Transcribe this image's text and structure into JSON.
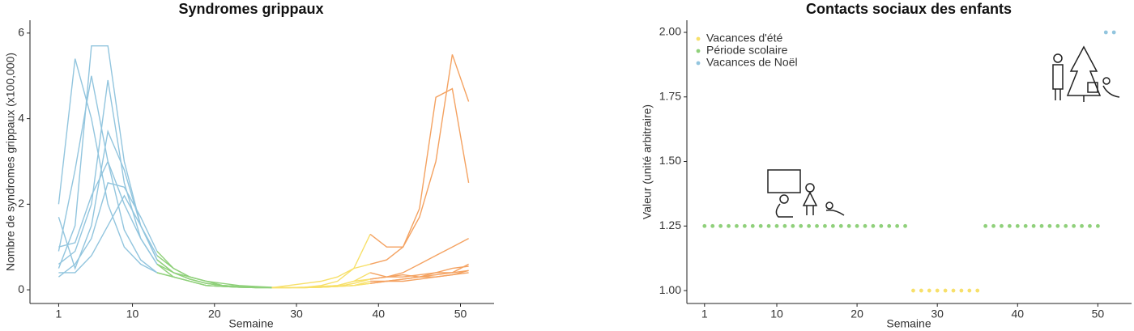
{
  "chart_data": [
    {
      "type": "line",
      "title": "Syndromes grippaux",
      "x_label": "Semaine",
      "y_label": "Nombre de syndromes grippaux (x100,000)",
      "x": [
        1,
        3,
        5,
        7,
        9,
        11,
        13,
        15,
        17,
        19,
        21,
        23,
        25,
        27,
        29,
        31,
        33,
        35,
        37,
        39,
        41,
        43,
        45,
        47,
        49,
        51
      ],
      "segments": [
        {
          "from": 1,
          "to": 13,
          "color": "#92c5de"
        },
        {
          "from": 13,
          "to": 27,
          "color": "#8fd07a"
        },
        {
          "from": 27,
          "to": 39,
          "color": "#f7e06a"
        },
        {
          "from": 39,
          "to": 51,
          "color": "#f4a261"
        }
      ],
      "series": [
        {
          "values": [
            2.0,
            5.4,
            4.0,
            2.0,
            1.0,
            0.6,
            0.4,
            0.3,
            0.2,
            0.1,
            0.08,
            0.06,
            0.05,
            0.05,
            0.05,
            0.06,
            0.08,
            0.1,
            0.2,
            0.4,
            0.3,
            0.3,
            0.35,
            0.4,
            0.4,
            0.45
          ]
        },
        {
          "values": [
            0.5,
            1.5,
            5.7,
            5.7,
            3.0,
            1.5,
            0.7,
            0.4,
            0.25,
            0.15,
            0.1,
            0.08,
            0.06,
            0.05,
            0.05,
            0.06,
            0.1,
            0.2,
            0.5,
            1.3,
            1.0,
            1.0,
            1.7,
            3.0,
            5.5,
            4.4
          ]
        },
        {
          "values": [
            0.9,
            2.8,
            5.0,
            3.0,
            1.4,
            0.7,
            0.4,
            0.3,
            0.2,
            0.1,
            0.08,
            0.06,
            0.05,
            0.05,
            0.1,
            0.15,
            0.2,
            0.3,
            0.5,
            0.6,
            0.7,
            1.0,
            1.9,
            4.5,
            4.7,
            2.5
          ]
        },
        {
          "values": [
            0.6,
            0.9,
            2.0,
            4.9,
            2.5,
            1.2,
            0.6,
            0.3,
            0.2,
            0.1,
            0.08,
            0.06,
            0.05,
            0.05,
            0.05,
            0.06,
            0.08,
            0.1,
            0.2,
            0.25,
            0.3,
            0.4,
            0.6,
            0.8,
            1.0,
            1.2
          ]
        },
        {
          "values": [
            1.7,
            0.5,
            1.5,
            3.7,
            2.8,
            1.5,
            0.7,
            0.4,
            0.25,
            0.15,
            0.1,
            0.08,
            0.05,
            0.05,
            0.05,
            0.05,
            0.06,
            0.08,
            0.1,
            0.15,
            0.2,
            0.25,
            0.3,
            0.35,
            0.4,
            0.6
          ]
        },
        {
          "values": [
            0.3,
            0.6,
            1.2,
            2.5,
            2.4,
            1.7,
            0.9,
            0.5,
            0.3,
            0.2,
            0.1,
            0.08,
            0.06,
            0.05,
            0.05,
            0.05,
            0.06,
            0.08,
            0.1,
            0.15,
            0.2,
            0.2,
            0.25,
            0.3,
            0.35,
            0.45
          ]
        },
        {
          "values": [
            1.0,
            1.1,
            2.2,
            3.0,
            2.0,
            1.2,
            0.6,
            0.4,
            0.3,
            0.2,
            0.1,
            0.08,
            0.06,
            0.05,
            0.05,
            0.05,
            0.06,
            0.08,
            0.15,
            0.25,
            0.3,
            0.35,
            0.3,
            0.4,
            0.5,
            0.55
          ]
        },
        {
          "values": [
            0.4,
            0.4,
            0.8,
            1.5,
            2.2,
            1.5,
            0.8,
            0.5,
            0.3,
            0.2,
            0.15,
            0.1,
            0.08,
            0.06,
            0.05,
            0.05,
            0.06,
            0.08,
            0.1,
            0.2,
            0.2,
            0.25,
            0.3,
            0.3,
            0.35,
            0.4
          ]
        }
      ],
      "xlim": [
        -2.5,
        54.1
      ],
      "xticks": [
        10,
        20,
        30,
        40,
        50,
        1
      ],
      "ylim": [
        -0.32,
        6.3
      ],
      "yticks": [
        0,
        2,
        4,
        6
      ]
    },
    {
      "type": "scatter",
      "title": "Contacts sociaux des enfants",
      "x_label": "Semaine",
      "y_label": "Valeur (unité arbitraire)",
      "legend": "top-left",
      "series": [
        {
          "name": "Vacances d'été",
          "color": "#f7e06a",
          "x": [
            27,
            28,
            29,
            30,
            31,
            32,
            33,
            34,
            35
          ],
          "values": [
            1,
            1,
            1,
            1,
            1,
            1,
            1,
            1,
            1
          ]
        },
        {
          "name": "Période scolaire",
          "color": "#8fd07a",
          "x": [
            1,
            2,
            3,
            4,
            5,
            6,
            7,
            8,
            9,
            10,
            11,
            12,
            13,
            14,
            15,
            16,
            17,
            18,
            19,
            20,
            21,
            22,
            23,
            24,
            25,
            26,
            36,
            37,
            38,
            39,
            40,
            41,
            42,
            43,
            44,
            45,
            46,
            47,
            48,
            49,
            50
          ],
          "values": [
            1.25,
            1.25,
            1.25,
            1.25,
            1.25,
            1.25,
            1.25,
            1.25,
            1.25,
            1.25,
            1.25,
            1.25,
            1.25,
            1.25,
            1.25,
            1.25,
            1.25,
            1.25,
            1.25,
            1.25,
            1.25,
            1.25,
            1.25,
            1.25,
            1.25,
            1.25,
            1.25,
            1.25,
            1.25,
            1.25,
            1.25,
            1.25,
            1.25,
            1.25,
            1.25,
            1.25,
            1.25,
            1.25,
            1.25,
            1.25,
            1.25
          ]
        },
        {
          "name": "Vacances de Noël",
          "color": "#92c5de",
          "x": [
            51,
            52
          ],
          "values": [
            2,
            2
          ]
        }
      ],
      "xlim": [
        -1.2,
        54.2
      ],
      "xticks": [
        1,
        10,
        20,
        30,
        40,
        50
      ],
      "ylim": [
        0.95,
        2.047
      ],
      "yticks": [
        {
          "value": 1,
          "label": "1.00"
        },
        {
          "value": 1.25,
          "label": "1.25"
        },
        {
          "value": 1.5,
          "label": "1.50"
        },
        {
          "value": 1.75,
          "label": "1.75"
        },
        {
          "value": 2,
          "label": "2.00"
        }
      ]
    }
  ]
}
